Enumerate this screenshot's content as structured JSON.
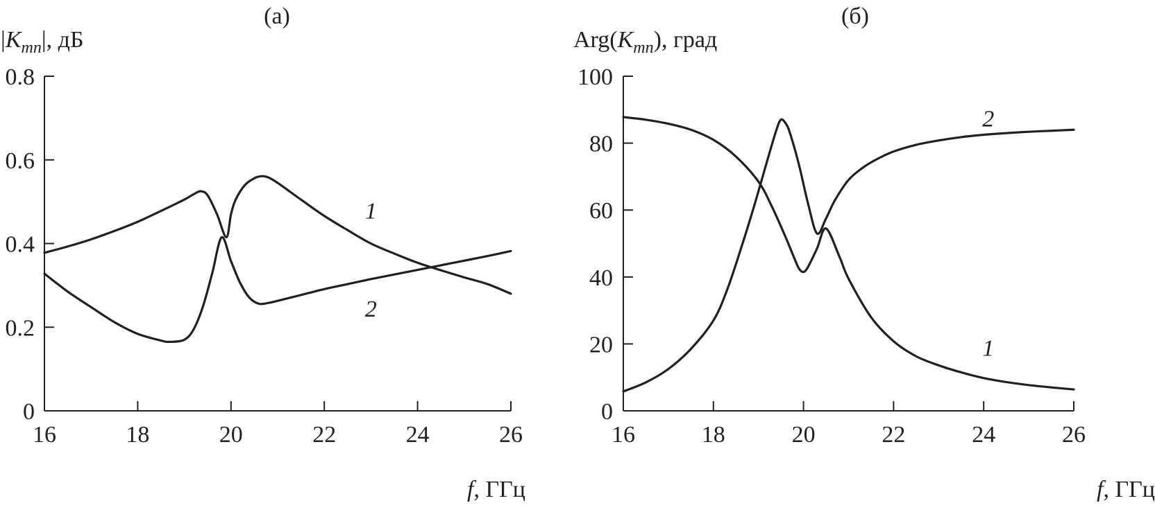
{
  "chart_data": [
    {
      "type": "line",
      "panel_label": "(а)",
      "ylabel": {
        "prefix": "|",
        "main": "K",
        "sub": "mn",
        "suffix": "|, дБ"
      },
      "xlabel": {
        "main": "f",
        "suffix": ", ГГц"
      },
      "xlim": [
        16,
        26
      ],
      "ylim": [
        0,
        0.8
      ],
      "xticks": [
        16,
        18,
        20,
        22,
        24,
        26
      ],
      "xtick_labels": [
        "16",
        "18",
        "20",
        "22",
        "24",
        "26"
      ],
      "yticks": [
        0,
        0.2,
        0.4,
        0.6,
        0.8
      ],
      "ytick_labels": [
        "0",
        "0.2",
        "0.4",
        "0.6",
        "0.8"
      ],
      "grid": false,
      "series": [
        {
          "name": "1",
          "label_at": [
            23,
            0.46
          ],
          "x": [
            16,
            16.5,
            17,
            17.5,
            18,
            18.5,
            19,
            19.2,
            19.35,
            19.5,
            19.7,
            19.9,
            20,
            20.1,
            20.3,
            20.5,
            20.65,
            20.8,
            21,
            21.5,
            22,
            22.5,
            23,
            23.5,
            24,
            24.5,
            25,
            25.5,
            26
          ],
          "y": [
            0.378,
            0.393,
            0.41,
            0.43,
            0.452,
            0.478,
            0.505,
            0.518,
            0.525,
            0.515,
            0.47,
            0.415,
            0.47,
            0.505,
            0.54,
            0.556,
            0.561,
            0.558,
            0.545,
            0.505,
            0.466,
            0.432,
            0.4,
            0.376,
            0.354,
            0.336,
            0.319,
            0.303,
            0.28
          ]
        },
        {
          "name": "2",
          "label_at": [
            23,
            0.225
          ],
          "x": [
            16,
            16.5,
            17,
            17.5,
            18,
            18.5,
            18.7,
            19,
            19.2,
            19.4,
            19.6,
            19.8,
            20,
            20.2,
            20.4,
            20.6,
            20.8,
            21,
            21.5,
            22,
            22.5,
            23,
            23.5,
            24,
            24.5,
            25,
            25.5,
            26
          ],
          "y": [
            0.328,
            0.285,
            0.248,
            0.212,
            0.184,
            0.168,
            0.165,
            0.17,
            0.195,
            0.25,
            0.33,
            0.415,
            0.358,
            0.305,
            0.27,
            0.256,
            0.258,
            0.263,
            0.277,
            0.291,
            0.303,
            0.315,
            0.326,
            0.337,
            0.348,
            0.359,
            0.37,
            0.382
          ]
        }
      ]
    },
    {
      "type": "line",
      "panel_label": "(б)",
      "ylabel": {
        "prefix": "Arg(",
        "main": "K",
        "sub": "mn",
        "suffix": "), град"
      },
      "xlabel": {
        "main": "f",
        "suffix": ", ГГц"
      },
      "xlim": [
        16,
        26
      ],
      "ylim": [
        0,
        100
      ],
      "xticks": [
        16,
        18,
        20,
        22,
        24,
        26
      ],
      "xtick_labels": [
        "16",
        "18",
        "20",
        "22",
        "24",
        "26"
      ],
      "yticks": [
        0,
        20,
        40,
        60,
        80,
        100
      ],
      "ytick_labels": [
        "0",
        "20",
        "40",
        "60",
        "80",
        "100"
      ],
      "grid": false,
      "series": [
        {
          "name": "1",
          "label_at": [
            24.1,
            16.5
          ],
          "x": [
            16,
            16.5,
            17,
            17.5,
            18,
            18.5,
            19,
            19.3,
            19.6,
            19.8,
            19.9,
            20,
            20.1,
            20.3,
            20.5,
            20.8,
            21,
            21.5,
            22,
            22.5,
            23,
            23.5,
            24,
            24.5,
            25,
            25.5,
            26
          ],
          "y": [
            87.8,
            87,
            85.8,
            84,
            81,
            76,
            68.5,
            61,
            52,
            45.5,
            42.5,
            41.5,
            43,
            48.5,
            54.5,
            46,
            39.5,
            28,
            20.8,
            16.3,
            13.6,
            11.5,
            9.8,
            8.6,
            7.7,
            7,
            6.4
          ]
        },
        {
          "name": "2",
          "label_at": [
            24.1,
            85
          ],
          "x": [
            16,
            16.5,
            17,
            17.5,
            18,
            18.3,
            18.6,
            18.9,
            19.2,
            19.4,
            19.5,
            19.6,
            19.7,
            19.9,
            20.1,
            20.3,
            20.5,
            20.7,
            21,
            21.3,
            21.6,
            22,
            22.5,
            23,
            23.5,
            24,
            24.5,
            25,
            25.5,
            26
          ],
          "y": [
            5.8,
            8.5,
            12.5,
            18.5,
            27,
            36,
            48,
            61,
            75,
            84,
            87,
            86,
            83,
            73.5,
            62,
            53,
            57.5,
            63,
            69,
            72.5,
            75,
            77.5,
            79.5,
            80.8,
            81.8,
            82.5,
            83,
            83.4,
            83.7,
            84
          ]
        }
      ]
    }
  ]
}
